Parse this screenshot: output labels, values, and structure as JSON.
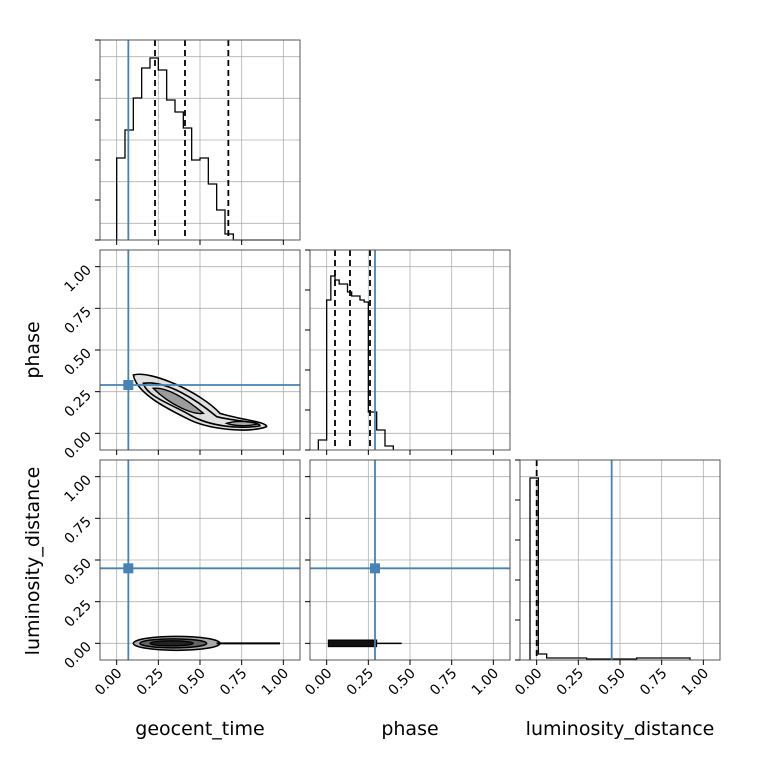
{
  "chart_data": {
    "type": "corner",
    "parameters": [
      "geocent_time",
      "phase",
      "luminosity_distance"
    ],
    "tick_labels": [
      "0.00",
      "0.25",
      "0.50",
      "0.75",
      "1.00"
    ],
    "axis_range": [
      -0.1,
      1.1
    ],
    "truths": {
      "geocent_time": 0.07,
      "phase": 0.29,
      "luminosity_distance": 0.45
    },
    "quantiles_dashed": {
      "geocent_time": [
        0.23,
        0.41,
        0.67
      ],
      "phase": [
        0.05,
        0.14,
        0.26
      ],
      "luminosity_distance": [
        0.0
      ]
    },
    "marginal_histograms": {
      "geocent_time": {
        "bin_edges": [
          0.0,
          0.05,
          0.1,
          0.15,
          0.2,
          0.25,
          0.3,
          0.35,
          0.4,
          0.45,
          0.5,
          0.55,
          0.6,
          0.65,
          0.7,
          0.75,
          0.8,
          0.85,
          0.9,
          0.95,
          1.0
        ],
        "heights": [
          0.41,
          0.55,
          0.71,
          0.86,
          0.91,
          0.85,
          0.7,
          0.64,
          0.56,
          0.4,
          0.41,
          0.28,
          0.15,
          0.03,
          0,
          0,
          0,
          0,
          0,
          0
        ],
        "y_max": 1.0
      },
      "phase": {
        "bin_edges": [
          -0.05,
          0.0,
          0.025,
          0.05,
          0.075,
          0.1,
          0.125,
          0.15,
          0.175,
          0.2,
          0.225,
          0.25,
          0.275,
          0.3,
          0.325,
          0.35,
          0.375,
          0.4
        ],
        "heights": [
          0.05,
          0.75,
          0.87,
          0.85,
          0.83,
          0.83,
          0.79,
          0.77,
          0.77,
          0.75,
          0.74,
          0.19,
          0.19,
          0.1,
          0.1,
          0.02,
          0.02
        ],
        "y_max": 1.0
      },
      "luminosity_distance": {
        "bin_edges": [
          -0.04,
          0.01,
          0.06,
          0.3,
          0.6,
          0.92
        ],
        "heights": [
          0.91,
          0.03,
          0.01,
          0.005,
          0.01
        ],
        "y_max": 1.0
      }
    },
    "xlabels": [
      "geocent_time",
      "phase",
      "luminosity_distance"
    ],
    "ylabels": [
      "",
      "phase",
      "luminosity_distance"
    ],
    "grid": true
  }
}
